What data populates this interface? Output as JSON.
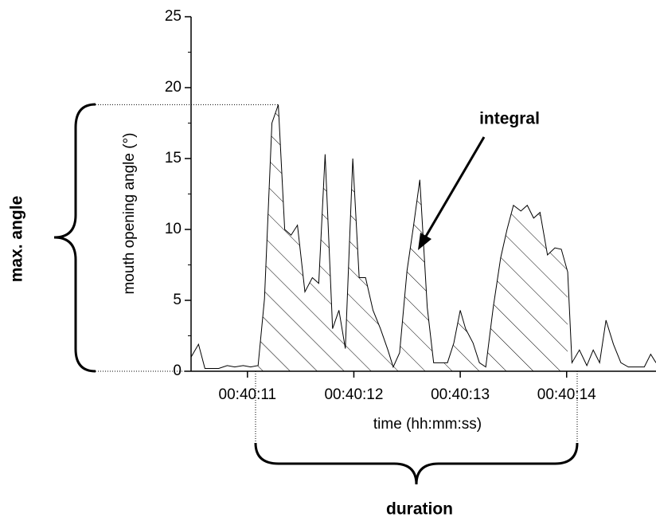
{
  "chart_data": {
    "type": "line",
    "y_label": "mouth opening angle (°)",
    "x_label": "time (hh:mm:ss)",
    "annotations": {
      "integral": "integral",
      "max_angle": "max. angle",
      "duration": "duration"
    },
    "x": [
      10.47,
      10.54,
      10.6,
      10.73,
      10.81,
      10.88,
      10.96,
      11.03,
      11.1,
      11.16,
      11.23,
      11.29,
      11.35,
      11.41,
      11.47,
      11.54,
      11.61,
      11.67,
      11.73,
      11.8,
      11.86,
      11.92,
      11.99,
      12.05,
      12.11,
      12.18,
      12.25,
      12.32,
      12.37,
      12.43,
      12.5,
      12.56,
      12.62,
      12.69,
      12.75,
      12.82,
      12.88,
      12.94,
      13.0,
      13.05,
      13.12,
      13.18,
      13.24,
      13.31,
      13.38,
      13.44,
      13.5,
      13.57,
      13.63,
      13.69,
      13.75,
      13.82,
      13.89,
      13.95,
      14.01,
      14.05,
      14.12,
      14.19,
      14.25,
      14.31,
      14.37,
      14.44,
      14.51,
      14.58,
      14.66,
      14.73,
      14.79,
      14.84
    ],
    "series": [
      {
        "color": "#000000",
        "values": [
          1.0,
          1.9,
          0.2,
          0.2,
          0.4,
          0.3,
          0.4,
          0.3,
          0.4,
          5.1,
          17.5,
          18.8,
          10.0,
          9.6,
          10.3,
          5.6,
          6.6,
          6.2,
          15.3,
          3.0,
          4.3,
          1.6,
          15.0,
          6.6,
          6.6,
          4.3,
          3.0,
          1.5,
          0.3,
          1.3,
          7.1,
          10.2,
          13.5,
          4.5,
          0.6,
          0.6,
          0.6,
          2.0,
          4.3,
          3.0,
          2.0,
          0.6,
          0.3,
          4.5,
          8.0,
          10.0,
          11.7,
          11.3,
          11.7,
          10.8,
          11.2,
          8.2,
          8.7,
          8.6,
          7.0,
          0.6,
          1.5,
          0.4,
          1.5,
          0.6,
          3.6,
          1.9,
          0.6,
          0.3,
          0.3,
          0.3,
          1.2,
          0.6
        ]
      }
    ],
    "xlim": [
      10.47,
      14.84
    ],
    "xticks": [
      {
        "value": 11,
        "label": "00:40:11"
      },
      {
        "value": 12,
        "label": "00:40:12"
      },
      {
        "value": 13,
        "label": "00:40:13"
      },
      {
        "value": 14,
        "label": "00:40:14"
      }
    ],
    "ylim": [
      0,
      25
    ],
    "yticks": [
      0,
      5,
      10,
      15,
      20,
      25
    ]
  }
}
